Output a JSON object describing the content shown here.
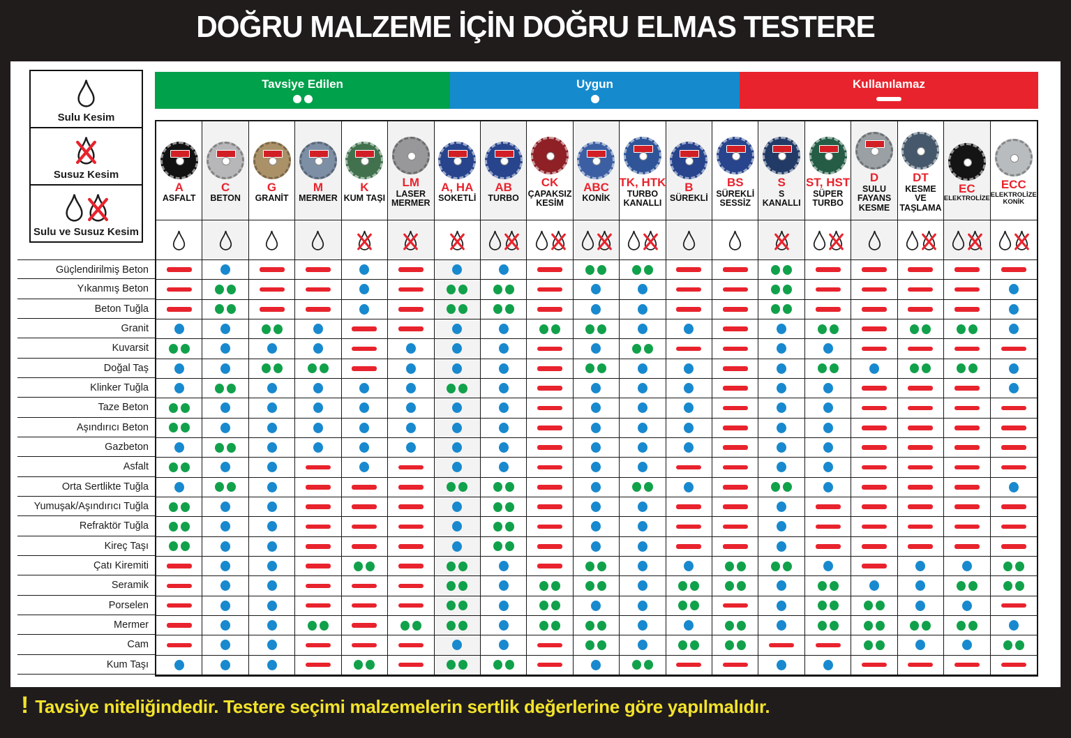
{
  "title": "DOĞRU MALZEME İÇİN DOĞRU ELMAS TESTERE",
  "colors": {
    "recommended_green": "#12a14b",
    "suitable_blue": "#1889ce",
    "unusable_red": "#e8232d",
    "legend_green_bg": "#00a14b",
    "legend_blue_bg": "#158bce",
    "legend_red_bg": "#e8232d",
    "footer_yellow": "#f3e32a",
    "poster_black": "#201c1c"
  },
  "legend": [
    {
      "label": "Tavsiye Edilen",
      "symbol": "●●",
      "color": "#00a14b"
    },
    {
      "label": "Uygun",
      "symbol": "●",
      "color": "#158bce"
    },
    {
      "label": "Kullanılamaz",
      "symbol": "—",
      "color": "#e8232d"
    }
  ],
  "cut_types": [
    {
      "id": "wet",
      "label": "Sulu Kesim"
    },
    {
      "id": "dry",
      "label": "Susuz Kesim"
    },
    {
      "id": "both",
      "label": "Sulu ve Susuz Kesim"
    }
  ],
  "blades": [
    {
      "code": "A",
      "name": "ASFALT",
      "water": "wet",
      "disc": "#121212",
      "style": "label"
    },
    {
      "code": "C",
      "name": "BETON",
      "water": "wet",
      "disc": "#b7b7b9",
      "style": "label"
    },
    {
      "code": "G",
      "name": "GRANİT",
      "water": "wet",
      "disc": "#ab9168",
      "style": "label"
    },
    {
      "code": "M",
      "name": "MERMER",
      "water": "wet",
      "disc": "#7d8fa5",
      "style": "label"
    },
    {
      "code": "K",
      "name": "KUM TAŞI",
      "water": "dry",
      "disc": "#41724d",
      "style": "label"
    },
    {
      "code": "LM",
      "name": "LASER MERMER",
      "water": "dry",
      "disc": "#98989a",
      "style": "plain"
    },
    {
      "code": "A, HA",
      "name": "SOKETLİ",
      "water": "dry",
      "disc": "#27448c",
      "style": "label"
    },
    {
      "code": "AB",
      "name": "TURBO",
      "water": "both",
      "disc": "#27448c",
      "style": "label"
    },
    {
      "code": "CK",
      "name": "ÇAPAKSIZ KESİM",
      "water": "both",
      "disc": "#8e2026",
      "style": "plain"
    },
    {
      "code": "ABC",
      "name": "KONİK",
      "water": "both",
      "disc": "#3c5fa3",
      "style": "label"
    },
    {
      "code": "TK, HTK",
      "name": "TURBO KANALLI",
      "water": "both",
      "disc": "#2f5598",
      "style": "label"
    },
    {
      "code": "B",
      "name": "SÜREKLİ",
      "water": "wet",
      "disc": "#27448c",
      "style": "label"
    },
    {
      "code": "BS",
      "name": "SÜREKLİ SESSİZ",
      "water": "wet",
      "disc": "#27448c",
      "style": "label"
    },
    {
      "code": "S",
      "name": "S KANALLI",
      "water": "dry",
      "disc": "#223a66",
      "style": "label"
    },
    {
      "code": "ST, HST",
      "name": "SÜPER TURBO",
      "water": "both",
      "disc": "#245c46",
      "style": "label"
    },
    {
      "code": "D",
      "name": "SULU FAYANS KESME",
      "water": "wet",
      "disc": "#9aa0a4",
      "style": "label"
    },
    {
      "code": "DT",
      "name": "KESME VE TAŞLAMA",
      "water": "both",
      "disc": "#46586b",
      "style": "plain"
    },
    {
      "code": "EC",
      "name": "ELEKTROLİZE",
      "water": "both",
      "disc": "#141414",
      "style": "plain"
    },
    {
      "code": "ECC",
      "name": "ELEKTROLİZE KONİK",
      "water": "both",
      "disc": "#b9bcbe",
      "style": "plain"
    }
  ],
  "ratings_key": {
    "G": "Tavsiye Edilen",
    "B": "Uygun",
    "R": "Kullanılamaz"
  },
  "chart_data": {
    "type": "table",
    "title": "DOĞRU MALZEME İÇİN DOĞRU ELMAS TESTERE",
    "legend": [
      {
        "symbol": "●●",
        "label": "Tavsiye Edilen",
        "color": "#00a14b"
      },
      {
        "symbol": "●",
        "label": "Uygun",
        "color": "#158bce"
      },
      {
        "symbol": "—",
        "label": "Kullanılamaz",
        "color": "#e8232d"
      }
    ],
    "columns": [
      "A ASFALT",
      "C BETON",
      "G GRANİT",
      "M MERMER",
      "K KUM TAŞI",
      "LM LASER MERMER",
      "A, HA SOKETLİ",
      "AB TURBO",
      "CK ÇAPAKSIZ KESİM",
      "ABC KONİK",
      "TK, HTK TURBO KANALLI",
      "B SÜREKLİ",
      "BS SÜREKLİ SESSİZ",
      "S S KANALLI",
      "ST, HST SÜPER TURBO",
      "D SULU FAYANS KESME",
      "DT KESME VE TAŞLAMA",
      "EC ELEKTROLİZE",
      "ECC ELEKTROLİZE KONİK"
    ],
    "column_water": [
      "wet",
      "wet",
      "wet",
      "wet",
      "dry",
      "dry",
      "dry",
      "both",
      "both",
      "both",
      "both",
      "wet",
      "wet",
      "dry",
      "both",
      "wet",
      "both",
      "both",
      "both"
    ],
    "rows": [
      "Güçlendirilmiş Beton",
      "Yıkanmış Beton",
      "Beton Tuğla",
      "Granit",
      "Kuvarsit",
      "Doğal Taş",
      "Klinker Tuğla",
      "Taze Beton",
      "Aşındırıcı Beton",
      "Gazbeton",
      "Asfalt",
      "Orta Sertlikte Tuğla",
      "Yumuşak/Aşındırıcı Tuğla",
      "Refraktör Tuğla",
      "Kireç Taşı",
      "Çatı Kiremiti",
      "Seramik",
      "Porselen",
      "Mermer",
      "Cam",
      "Kum Taşı"
    ],
    "values": [
      [
        "R",
        "B",
        "R",
        "R",
        "B",
        "R",
        "B",
        "B",
        "R",
        "G",
        "G",
        "R",
        "R",
        "G",
        "R",
        "R",
        "R",
        "R",
        "R"
      ],
      [
        "R",
        "G",
        "R",
        "R",
        "B",
        "R",
        "G",
        "G",
        "R",
        "B",
        "B",
        "R",
        "R",
        "G",
        "R",
        "R",
        "R",
        "R",
        "B"
      ],
      [
        "R",
        "G",
        "R",
        "R",
        "B",
        "R",
        "G",
        "G",
        "R",
        "B",
        "B",
        "R",
        "R",
        "G",
        "R",
        "R",
        "R",
        "R",
        "B"
      ],
      [
        "B",
        "B",
        "G",
        "B",
        "R",
        "R",
        "B",
        "B",
        "G",
        "G",
        "B",
        "B",
        "R",
        "B",
        "G",
        "R",
        "G",
        "G",
        "B"
      ],
      [
        "G",
        "B",
        "B",
        "B",
        "R",
        "B",
        "B",
        "B",
        "R",
        "B",
        "G",
        "R",
        "R",
        "B",
        "B",
        "R",
        "R",
        "R",
        "R"
      ],
      [
        "B",
        "B",
        "G",
        "G",
        "R",
        "B",
        "B",
        "B",
        "R",
        "G",
        "B",
        "B",
        "R",
        "B",
        "G",
        "B",
        "G",
        "G",
        "B"
      ],
      [
        "B",
        "G",
        "B",
        "B",
        "B",
        "B",
        "G",
        "B",
        "R",
        "B",
        "B",
        "B",
        "R",
        "B",
        "B",
        "R",
        "R",
        "R",
        "B"
      ],
      [
        "G",
        "B",
        "B",
        "B",
        "B",
        "B",
        "B",
        "B",
        "R",
        "B",
        "B",
        "B",
        "R",
        "B",
        "B",
        "R",
        "R",
        "R",
        "R"
      ],
      [
        "G",
        "B",
        "B",
        "B",
        "B",
        "B",
        "B",
        "B",
        "R",
        "B",
        "B",
        "B",
        "R",
        "B",
        "B",
        "R",
        "R",
        "R",
        "R"
      ],
      [
        "B",
        "G",
        "B",
        "B",
        "B",
        "B",
        "B",
        "B",
        "R",
        "B",
        "B",
        "B",
        "R",
        "B",
        "B",
        "R",
        "R",
        "R",
        "R"
      ],
      [
        "G",
        "B",
        "B",
        "R",
        "B",
        "R",
        "B",
        "B",
        "R",
        "B",
        "B",
        "R",
        "R",
        "B",
        "B",
        "R",
        "R",
        "R",
        "R"
      ],
      [
        "B",
        "G",
        "B",
        "R",
        "R",
        "R",
        "G",
        "G",
        "R",
        "B",
        "G",
        "B",
        "R",
        "G",
        "B",
        "R",
        "R",
        "R",
        "B"
      ],
      [
        "G",
        "B",
        "B",
        "R",
        "R",
        "R",
        "B",
        "G",
        "R",
        "B",
        "B",
        "R",
        "R",
        "B",
        "R",
        "R",
        "R",
        "R",
        "R"
      ],
      [
        "G",
        "B",
        "B",
        "R",
        "R",
        "R",
        "B",
        "G",
        "R",
        "B",
        "B",
        "R",
        "R",
        "B",
        "R",
        "R",
        "R",
        "R",
        "R"
      ],
      [
        "G",
        "B",
        "B",
        "R",
        "R",
        "R",
        "B",
        "G",
        "R",
        "B",
        "B",
        "R",
        "R",
        "B",
        "R",
        "R",
        "R",
        "R",
        "R"
      ],
      [
        "R",
        "B",
        "B",
        "R",
        "G",
        "R",
        "G",
        "B",
        "R",
        "G",
        "B",
        "B",
        "G",
        "G",
        "B",
        "R",
        "B",
        "B",
        "G"
      ],
      [
        "R",
        "B",
        "B",
        "R",
        "R",
        "R",
        "G",
        "B",
        "G",
        "G",
        "B",
        "G",
        "G",
        "B",
        "G",
        "B",
        "B",
        "G",
        "G"
      ],
      [
        "R",
        "B",
        "B",
        "R",
        "R",
        "R",
        "G",
        "B",
        "G",
        "B",
        "B",
        "G",
        "R",
        "B",
        "G",
        "G",
        "B",
        "B",
        "R"
      ],
      [
        "R",
        "B",
        "B",
        "G",
        "R",
        "G",
        "G",
        "B",
        "G",
        "G",
        "B",
        "B",
        "G",
        "B",
        "G",
        "G",
        "G",
        "G",
        "B"
      ],
      [
        "R",
        "B",
        "B",
        "R",
        "R",
        "R",
        "B",
        "B",
        "R",
        "G",
        "B",
        "G",
        "G",
        "R",
        "R",
        "G",
        "B",
        "B",
        "G"
      ],
      [
        "B",
        "B",
        "B",
        "R",
        "G",
        "R",
        "G",
        "G",
        "R",
        "B",
        "G",
        "R",
        "R",
        "B",
        "B",
        "R",
        "R",
        "R",
        "R"
      ]
    ]
  },
  "footer": {
    "bang": "!",
    "text": "Tavsiye niteliğindedir. Testere seçimi malzemelerin sertlik değerlerine göre yapılmalıdır."
  }
}
